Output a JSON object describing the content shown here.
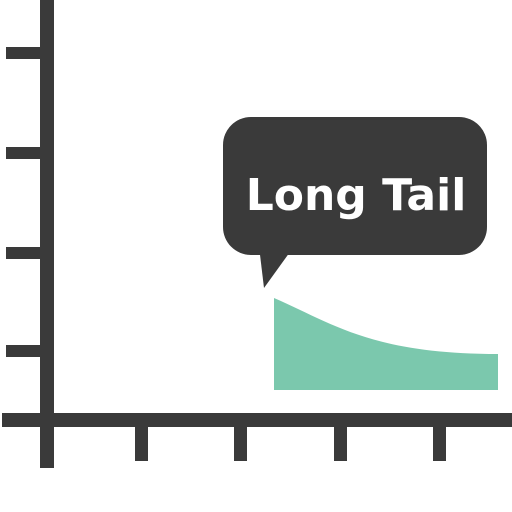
{
  "callout": {
    "label": "Long Tail",
    "text_color": "#ffffff",
    "bubble_color": "#3a3a3a"
  },
  "colors": {
    "axis": "#3a3a3a",
    "tail_area": "#7bc8ad",
    "background": "#ffffff"
  },
  "icon": "long-tail-graph-icon"
}
